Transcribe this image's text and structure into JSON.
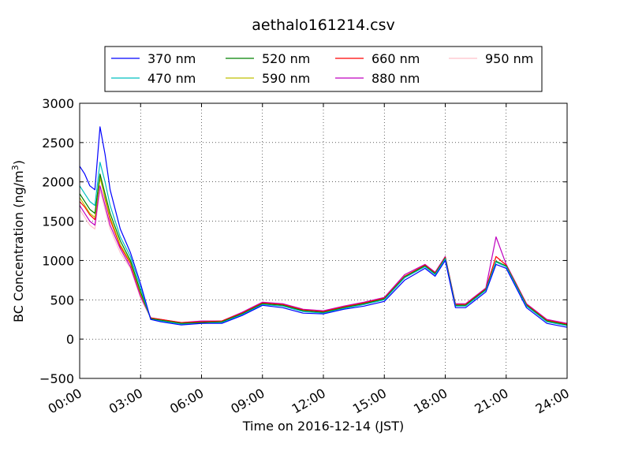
{
  "chart_data": {
    "type": "line",
    "title": "aethalo161214.csv",
    "xlabel": "Time on 2016-12-14 (JST)",
    "ylabel": "BC Concentration (ng/m",
    "ylabel_sup": "3",
    "ylabel_close": ")",
    "xlim_hours": [
      0,
      24
    ],
    "ylim": [
      -500,
      3000
    ],
    "yticks": [
      "3000",
      "2500",
      "2000",
      "1500",
      "1000",
      "500",
      "0",
      "−500"
    ],
    "xticks": [
      "00:00",
      "03:00",
      "06:00",
      "09:00",
      "12:00",
      "15:00",
      "18:00",
      "21:00",
      "24:00"
    ],
    "grid": true,
    "legend_position": "top-center",
    "x_hours": [
      0,
      0.25,
      0.5,
      0.75,
      1.0,
      1.25,
      1.5,
      2.0,
      2.5,
      3.0,
      3.5,
      4.0,
      5.0,
      6.0,
      7.0,
      8.0,
      9.0,
      10.0,
      11.0,
      12.0,
      13.0,
      14.0,
      15.0,
      16.0,
      17.0,
      17.5,
      18.0,
      18.5,
      19.0,
      20.0,
      20.5,
      21.0,
      22.0,
      23.0,
      24.0
    ],
    "series": [
      {
        "name": "370 nm",
        "color": "#0000ff",
        "values": [
          2200,
          2100,
          1950,
          1900,
          2700,
          2350,
          1900,
          1400,
          1100,
          700,
          250,
          220,
          180,
          200,
          200,
          300,
          430,
          400,
          330,
          320,
          380,
          420,
          480,
          750,
          900,
          800,
          1000,
          400,
          400,
          600,
          950,
          900,
          400,
          200,
          150
        ]
      },
      {
        "name": "470 nm",
        "color": "#00bfbf",
        "values": [
          1950,
          1850,
          1750,
          1700,
          2250,
          2000,
          1700,
          1300,
          1050,
          650,
          250,
          230,
          190,
          200,
          210,
          310,
          440,
          420,
          350,
          330,
          390,
          440,
          500,
          780,
          920,
          820,
          1020,
          420,
          420,
          620,
          980,
          920,
          420,
          220,
          170
        ]
      },
      {
        "name": "520 nm",
        "color": "#008000",
        "values": [
          1850,
          1750,
          1650,
          1600,
          2100,
          1850,
          1600,
          1250,
          1000,
          600,
          260,
          240,
          200,
          210,
          220,
          320,
          450,
          430,
          360,
          340,
          400,
          450,
          510,
          790,
          930,
          830,
          1030,
          430,
          430,
          630,
          990,
          930,
          430,
          230,
          180
        ]
      },
      {
        "name": "590 nm",
        "color": "#bfbf00",
        "values": [
          1800,
          1700,
          1600,
          1550,
          2050,
          1800,
          1550,
          1200,
          980,
          580,
          260,
          240,
          200,
          210,
          220,
          320,
          450,
          430,
          360,
          340,
          400,
          450,
          510,
          790,
          930,
          830,
          1030,
          430,
          430,
          630,
          990,
          930,
          430,
          230,
          180
        ]
      },
      {
        "name": "660 nm",
        "color": "#ff0000",
        "values": [
          1750,
          1680,
          1580,
          1520,
          2080,
          1780,
          1520,
          1180,
          960,
          570,
          270,
          250,
          210,
          220,
          230,
          330,
          460,
          440,
          370,
          350,
          410,
          460,
          520,
          800,
          940,
          840,
          1040,
          440,
          440,
          640,
          1050,
          940,
          440,
          240,
          190
        ]
      },
      {
        "name": "880 nm",
        "color": "#bf00bf",
        "values": [
          1700,
          1600,
          1500,
          1450,
          1950,
          1700,
          1450,
          1150,
          920,
          540,
          270,
          250,
          210,
          230,
          230,
          340,
          470,
          450,
          380,
          360,
          420,
          470,
          530,
          820,
          950,
          850,
          1050,
          450,
          450,
          650,
          1300,
          950,
          450,
          250,
          200
        ]
      },
      {
        "name": "950 nm",
        "color": "#ffc0cb",
        "values": [
          1650,
          1550,
          1450,
          1400,
          1900,
          1650,
          1400,
          1100,
          900,
          520,
          270,
          250,
          210,
          230,
          230,
          340,
          470,
          450,
          380,
          360,
          420,
          470,
          530,
          820,
          950,
          850,
          1050,
          450,
          450,
          650,
          1050,
          950,
          450,
          250,
          200
        ]
      }
    ]
  }
}
